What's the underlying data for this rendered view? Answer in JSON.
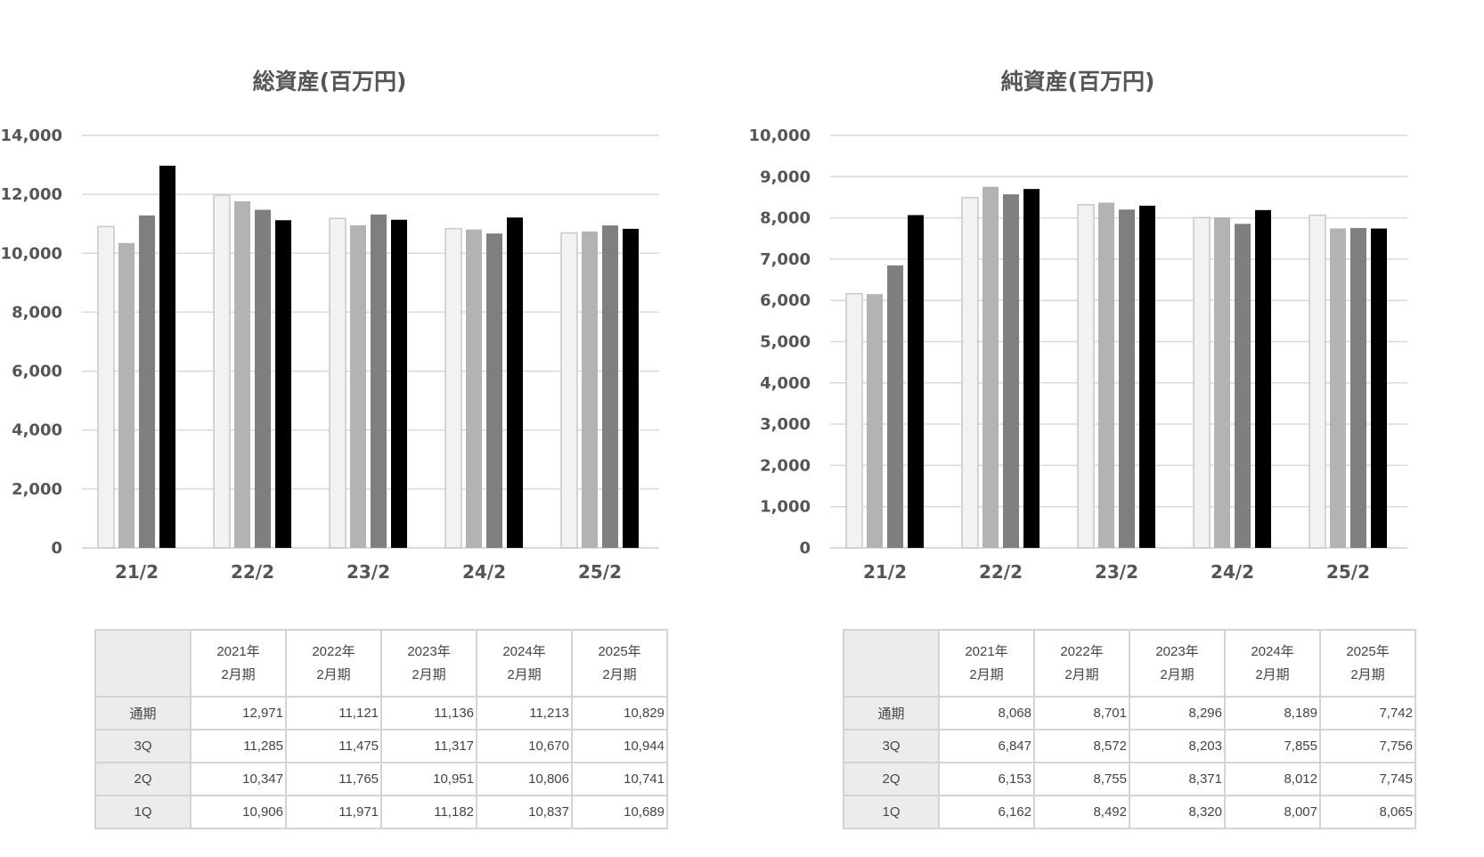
{
  "columns": [
    {
      "year": "2021年",
      "term": "2月期"
    },
    {
      "year": "2022年",
      "term": "2月期"
    },
    {
      "year": "2023年",
      "term": "2月期"
    },
    {
      "year": "2024年",
      "term": "2月期"
    },
    {
      "year": "2025年",
      "term": "2月期"
    }
  ],
  "row_labels": [
    "通期",
    "3Q",
    "2Q",
    "1Q"
  ],
  "series_colors": [
    "#f2f2f2",
    "#b3b3b3",
    "#7f7f7f",
    "#000000"
  ],
  "chart_data": [
    {
      "type": "bar",
      "title": "総資産(百万円)",
      "categories": [
        "21/2",
        "22/2",
        "23/2",
        "24/2",
        "25/2"
      ],
      "ylim": [
        0,
        14000
      ],
      "ytick_step": 2000,
      "yticks": [
        "0",
        "2,000",
        "4,000",
        "6,000",
        "8,000",
        "10,000",
        "12,000",
        "14,000"
      ],
      "grid": true,
      "legend": "none",
      "series": [
        {
          "values": [
            10906,
            11971,
            11182,
            10837,
            10689
          ]
        },
        {
          "values": [
            10347,
            11765,
            10951,
            10806,
            10741
          ]
        },
        {
          "values": [
            11285,
            11475,
            11317,
            10670,
            10944
          ]
        },
        {
          "values": [
            12971,
            11121,
            11136,
            11213,
            10829
          ]
        }
      ],
      "table": [
        [
          "12,971",
          "11,121",
          "11,136",
          "11,213",
          "10,829"
        ],
        [
          "11,285",
          "11,475",
          "11,317",
          "10,670",
          "10,944"
        ],
        [
          "10,347",
          "11,765",
          "10,951",
          "10,806",
          "10,741"
        ],
        [
          "10,906",
          "11,971",
          "11,182",
          "10,837",
          "10,689"
        ]
      ]
    },
    {
      "type": "bar",
      "title": "純資産(百万円)",
      "categories": [
        "21/2",
        "22/2",
        "23/2",
        "24/2",
        "25/2"
      ],
      "ylim": [
        0,
        10000
      ],
      "ytick_step": 1000,
      "yticks": [
        "0",
        "1,000",
        "2,000",
        "3,000",
        "4,000",
        "5,000",
        "6,000",
        "7,000",
        "8,000",
        "9,000",
        "10,000"
      ],
      "grid": true,
      "legend": "none",
      "series": [
        {
          "values": [
            6162,
            8492,
            8320,
            8007,
            8065
          ]
        },
        {
          "values": [
            6153,
            8755,
            8371,
            8012,
            7745
          ]
        },
        {
          "values": [
            6847,
            8572,
            8203,
            7855,
            7756
          ]
        },
        {
          "values": [
            8068,
            8701,
            8296,
            8189,
            7742
          ]
        }
      ],
      "table": [
        [
          "8,068",
          "8,701",
          "8,296",
          "8,189",
          "7,742"
        ],
        [
          "6,847",
          "8,572",
          "8,203",
          "7,855",
          "7,756"
        ],
        [
          "6,153",
          "8,755",
          "8,371",
          "8,012",
          "7,745"
        ],
        [
          "6,162",
          "8,492",
          "8,320",
          "8,007",
          "8,065"
        ]
      ]
    }
  ]
}
